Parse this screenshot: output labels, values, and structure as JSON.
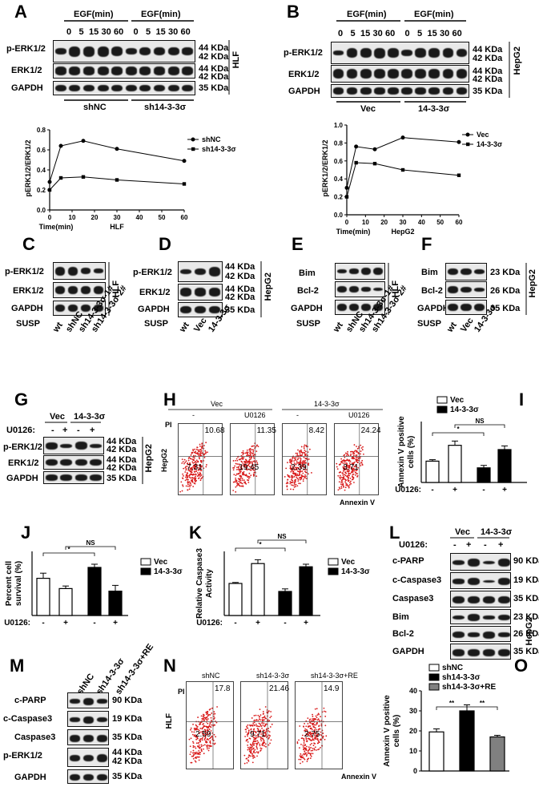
{
  "panels": {
    "A": {
      "letter": "A",
      "header_left": "EGF(min)",
      "header_right": "EGF(min)",
      "times": [
        "0",
        "5",
        "15",
        "30",
        "60",
        "0",
        "5",
        "15",
        "30",
        "60"
      ],
      "rows": [
        "p-ERK1/2",
        "ERK1/2",
        "GAPDH"
      ],
      "kda": [
        "44 KDa",
        "42 KDa",
        "44 KDa",
        "42 KDa",
        "35 KDa"
      ],
      "cell": "HLF",
      "groups": [
        "shNC",
        "sh14-3-3σ"
      ],
      "chart": {
        "ylabel": "pERK1/2/ERK1/2",
        "xlabel": "Time(min)",
        "subtitle": "HLF",
        "yticks": [
          "0.0",
          "0.2",
          "0.4",
          "0.6",
          "0.8"
        ],
        "xticks": [
          "0",
          "10",
          "20",
          "30",
          "40",
          "50",
          "60"
        ]
      }
    },
    "B": {
      "letter": "B",
      "header_left": "EGF(min)",
      "header_right": "EGF(min)",
      "times": [
        "0",
        "5",
        "15",
        "30",
        "60",
        "0",
        "5",
        "15",
        "30",
        "60"
      ],
      "rows": [
        "p-ERK1/2",
        "ERK1/2",
        "GAPDH"
      ],
      "kda": [
        "44 KDa",
        "42 KDa",
        "44 KDa",
        "42 KDa",
        "35 KDa"
      ],
      "cell": "HepG2",
      "groups": [
        "Vec",
        "14-3-3σ"
      ],
      "chart": {
        "ylabel": "pERK1/2/ERK1/2",
        "xlabel": "Time(min)",
        "subtitle": "HepG2",
        "yticks": [
          "0.0",
          "0.2",
          "0.4",
          "0.6",
          "0.8",
          "1.0"
        ],
        "xticks": [
          "0",
          "10",
          "20",
          "30",
          "40",
          "50",
          "60"
        ]
      }
    },
    "C": {
      "letter": "C",
      "rows": [
        "p-ERK1/2",
        "ERK1/2",
        "GAPDH"
      ],
      "cell": "HLF",
      "susp": "SUSP",
      "lanes": [
        "wt",
        "shNC",
        "sh14-3-3σ-1#",
        "sh14-3-3σ-2#"
      ]
    },
    "D": {
      "letter": "D",
      "rows": [
        "p-ERK1/2",
        "ERK1/2",
        "GAPDH"
      ],
      "cell": "HepG2",
      "susp": "SUSP",
      "kda": [
        "44 KDa",
        "42 KDa",
        "44 KDa",
        "42 KDa",
        "35 KDa"
      ],
      "lanes": [
        "wt",
        "Vec",
        "14-3-3σ"
      ]
    },
    "E": {
      "letter": "E",
      "rows": [
        "Bim",
        "Bcl-2",
        "GAPDH"
      ],
      "cell": "HLF",
      "susp": "SUSP",
      "lanes": [
        "wt",
        "shNC",
        "sh14-3-3σ-1#",
        "sh14-3-3σ-2#"
      ]
    },
    "F": {
      "letter": "F",
      "rows": [
        "Bim",
        "Bcl-2",
        "GAPDH"
      ],
      "cell": "HepG2",
      "susp": "SUSP",
      "kda": [
        "23 KDa",
        "26 KDa",
        "35 KDa"
      ],
      "lanes": [
        "wt",
        "Vec",
        "14-3-3σ"
      ]
    },
    "G": {
      "letter": "G",
      "groups": [
        "Vec",
        "14-3-3σ"
      ],
      "treat": "U0126:",
      "signs": [
        "-",
        "+",
        "-",
        "+"
      ],
      "rows": [
        "p-ERK1/2",
        "ERK1/2",
        "GAPDH"
      ],
      "kda": [
        "44 KDa",
        "42 KDa",
        "44 KDa",
        "42 KDa",
        "35 KDa"
      ],
      "cell": "HepG2"
    },
    "H": {
      "letter": "H",
      "groups": [
        "Vec",
        "14-3-3σ"
      ],
      "conds": [
        "-",
        "U0126",
        "-",
        "U0126"
      ],
      "q_upper": [
        "10.68",
        "11.35",
        "8.42",
        "24.24"
      ],
      "q_lower": [
        "7.31",
        "19.45",
        "2.39",
        "3.71"
      ],
      "ylabel": "PI",
      "cell": "HepG2",
      "xlabel": "Annexin V"
    },
    "I": {
      "letter": "I",
      "ylabel": "Annexin V positive cells (%)",
      "legend": [
        "Vec",
        "14-3-3σ"
      ],
      "treat": "U0126:",
      "signs": [
        "-",
        "+",
        "-",
        "+"
      ],
      "sig": [
        "*",
        "NS"
      ]
    },
    "J": {
      "letter": "J",
      "ylabel": "Percent cell survival (%)",
      "legend": [
        "Vec",
        "14-3-3σ"
      ],
      "treat": "U0126:",
      "signs": [
        "-",
        "+",
        "-",
        "+"
      ],
      "sig": [
        "*",
        "NS"
      ]
    },
    "K": {
      "letter": "K",
      "ylabel": "Relative Caspase3 Activity",
      "legend": [
        "Vec",
        "14-3-3σ"
      ],
      "treat": "U0126:",
      "signs": [
        "-",
        "+",
        "-",
        "+"
      ],
      "sig": [
        "*",
        "NS"
      ]
    },
    "L": {
      "letter": "L",
      "groups": [
        "Vec",
        "14-3-3σ"
      ],
      "treat": "U0126:",
      "signs": [
        "-",
        "+",
        "-",
        "+"
      ],
      "rows": [
        "c-PARP",
        "c-Caspase3",
        "Caspase3",
        "Bim",
        "Bcl-2",
        "GAPDH"
      ],
      "kda": [
        "90 KDa",
        "19 KDa",
        "35 KDa",
        "23 KDa",
        "26 KDa",
        "35 KDa"
      ],
      "cell": "HepG2"
    },
    "M": {
      "letter": "M",
      "lanes": [
        "shNC",
        "sh14-3-3σ",
        "sh14-3-3σ+RE"
      ],
      "rows": [
        "c-PARP",
        "c-Caspase3",
        "Caspase3",
        "p-ERK1/2",
        "GAPDH"
      ],
      "kda": [
        "90 KDa",
        "19 KDa",
        "35 KDa",
        "44 KDa",
        "42 KDa",
        "35 KDa"
      ]
    },
    "N": {
      "letter": "N",
      "conds": [
        "shNC",
        "sh14-3-3σ",
        "sh14-3-3σ+RE"
      ],
      "q_upper": [
        "17.8",
        "21.46",
        "14.9"
      ],
      "q_lower": [
        "2.59",
        "9.71",
        "2.75"
      ],
      "ylabel": "PI",
      "cell": "HLF",
      "xlabel": "Annexin V"
    },
    "O": {
      "letter": "O",
      "ylabel": "Annexin V positive cells (%)",
      "legend": [
        "shNC",
        "sh14-3-3σ",
        "sh14-3-3σ+RE"
      ],
      "yticks": [
        "0",
        "10",
        "20",
        "30",
        "40"
      ],
      "sig": [
        "**",
        "**"
      ]
    }
  },
  "chart_data": [
    {
      "panel": "A",
      "type": "line",
      "x": [
        0,
        5,
        15,
        30,
        60
      ],
      "series": [
        {
          "name": "shNC",
          "values": [
            0.28,
            0.64,
            0.69,
            0.61,
            0.49
          ]
        },
        {
          "name": "sh14-3-3σ",
          "values": [
            0.2,
            0.32,
            0.33,
            0.3,
            0.26
          ]
        }
      ],
      "xlim": [
        0,
        60
      ],
      "ylim": [
        0,
        0.8
      ]
    },
    {
      "panel": "B",
      "type": "line",
      "x": [
        0,
        5,
        15,
        30,
        60
      ],
      "series": [
        {
          "name": "Vec",
          "values": [
            0.3,
            0.76,
            0.73,
            0.86,
            0.81
          ]
        },
        {
          "name": "14-3-3σ",
          "values": [
            0.2,
            0.58,
            0.57,
            0.5,
            0.44
          ]
        }
      ],
      "xlim": [
        0,
        60
      ],
      "ylim": [
        0,
        1.0
      ]
    },
    {
      "panel": "I",
      "type": "bar",
      "categories": [
        "-",
        "+",
        "-",
        "+"
      ],
      "values": [
        17.5,
        30.5,
        12,
        27
      ],
      "errors": [
        1.2,
        3.5,
        2,
        3
      ],
      "ylim": [
        0,
        50
      ]
    },
    {
      "panel": "J",
      "type": "bar",
      "categories": [
        "-",
        "+",
        "-",
        "+"
      ],
      "values": [
        58,
        42,
        75,
        38
      ],
      "errors": [
        8,
        4,
        5,
        9
      ],
      "ylim": [
        0,
        100
      ]
    },
    {
      "panel": "K",
      "type": "bar",
      "categories": [
        "-",
        "+",
        "-",
        "+"
      ],
      "values": [
        1.0,
        1.62,
        0.75,
        1.52
      ],
      "errors": [
        0.03,
        0.12,
        0.08,
        0.08
      ],
      "ylim": [
        0,
        2.0
      ]
    },
    {
      "panel": "O",
      "type": "bar",
      "categories": [
        "shNC",
        "sh14-3-3σ",
        "sh14-3-3σ+RE"
      ],
      "values": [
        19.5,
        30,
        17
      ],
      "errors": [
        1.5,
        3,
        0.8
      ],
      "ylim": [
        0,
        40
      ]
    }
  ]
}
